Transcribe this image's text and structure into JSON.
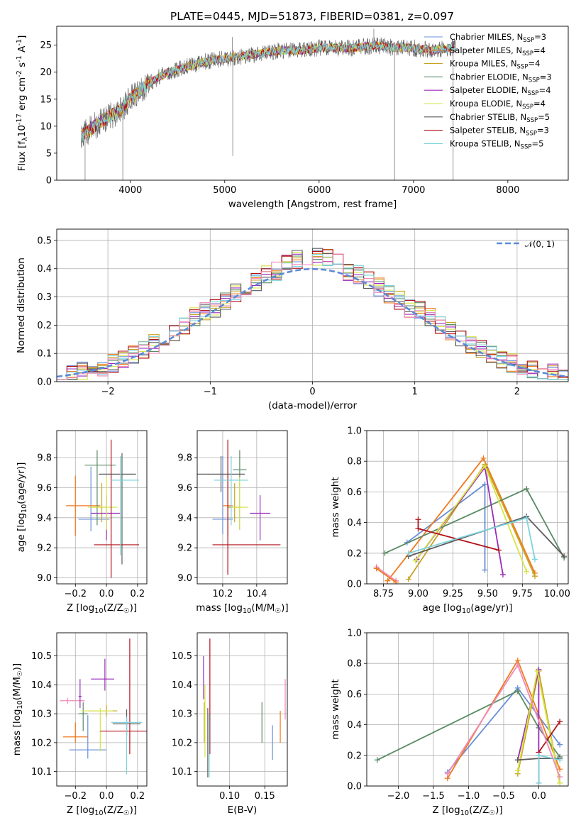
{
  "figure": {
    "title": "PLATE=0445, MJD=51873, FIBERID=0381, z=0.097"
  },
  "model_colors": [
    "#6a8fd8",
    "#ef7a1e",
    "#c8a321",
    "#5a8a64",
    "#9a2cbc",
    "#d6e444",
    "#5c5c5c",
    "#b1121a",
    "#7dd3db"
  ],
  "chart_data": [
    {
      "id": "spectrum",
      "type": "line",
      "xlabel": "wavelength [Angstrom, rest frame]",
      "ylabel": "Flux [f$_\\lambda$10$^{-17}$ erg cm$^{-2}$ s$^{-1}$ A$^{-1}$]",
      "xlim": [
        3220,
        8640
      ],
      "ylim": [
        0,
        28.5
      ],
      "xticks": [
        4000,
        5000,
        6000,
        7000,
        8000
      ],
      "yticks": [
        0,
        5,
        10,
        15,
        20,
        25
      ],
      "grid": false,
      "legend": "top-right",
      "series": [
        {
          "name": "Chabrier MILES, N$_{SSP}$=3",
          "label_main": "Chabrier MILES, N",
          "label_sub": "SSP",
          "label_end": "=3",
          "color": "#6a8fd8"
        },
        {
          "name": "Salpeter MILES, N$_{SSP}$=4",
          "label_main": "Salpeter MILES, N",
          "label_sub": "SSP",
          "label_end": "=4",
          "color": "#ef7a1e"
        },
        {
          "name": "Kroupa MILES, N$_{SSP}$=4",
          "label_main": "Kroupa MILES, N",
          "label_sub": "SSP",
          "label_end": "=4",
          "color": "#c8a321"
        },
        {
          "name": "Chabrier ELODIE, N$_{SSP}$=3",
          "label_main": "Chabrier ELODIE, N",
          "label_sub": "SSP",
          "label_end": "=3",
          "color": "#5a8a64"
        },
        {
          "name": "Salpeter ELODIE, N$_{SSP}$=4",
          "label_main": "Salpeter ELODIE, N",
          "label_sub": "SSP",
          "label_end": "=4",
          "color": "#9a2cbc"
        },
        {
          "name": "Kroupa ELODIE, N$_{SSP}$=4",
          "label_main": "Kroupa ELODIE, N",
          "label_sub": "SSP",
          "label_end": "=4",
          "color": "#d6e444"
        },
        {
          "name": "Chabrier STELIB, N$_{SSP}$=5",
          "label_main": "Chabrier STELIB, N",
          "label_sub": "SSP",
          "label_end": "=5",
          "color": "#5c5c5c"
        },
        {
          "name": "Salpeter STELIB, N$_{SSP}$=3",
          "label_main": "Salpeter STELIB, N",
          "label_sub": "SSP",
          "label_end": "=3",
          "color": "#b1121a"
        },
        {
          "name": "Kroupa STELIB, N$_{SSP}$=5",
          "label_main": "Kroupa STELIB, N",
          "label_sub": "SSP",
          "label_end": "=5",
          "color": "#7dd3db"
        }
      ],
      "continuum": {
        "x": [
          3500,
          3700,
          3900,
          4000,
          4200,
          4400,
          4600,
          4800,
          5000,
          5200,
          5400,
          5600,
          5800,
          6000,
          6200,
          6400,
          6600,
          6800,
          7000,
          7200,
          7400
        ],
        "y": [
          8.5,
          11,
          13,
          15,
          18,
          20,
          21,
          22,
          22.5,
          23,
          23.5,
          24,
          24,
          24.5,
          24.5,
          24.5,
          25,
          24.5,
          24.5,
          24,
          24.5
        ]
      },
      "features": {
        "spikes": [
          {
            "x": 5080,
            "y": 26.5
          },
          {
            "x": 5085,
            "y": 4.5
          },
          {
            "x": 6580,
            "y": 28
          },
          {
            "x": 6800,
            "y": 0
          },
          {
            "x": 7420,
            "y": 0
          },
          {
            "x": 3920,
            "y": 0
          },
          {
            "x": 3520,
            "y": 0
          }
        ]
      }
    },
    {
      "id": "residuals",
      "type": "step",
      "xlabel": "(data-model)/error",
      "ylabel": "Normed distribution",
      "xlim": [
        -2.5,
        2.5
      ],
      "ylim": [
        0,
        0.54
      ],
      "xticks": [
        -2,
        -1,
        0,
        1,
        2
      ],
      "yticks": [
        0.0,
        0.1,
        0.2,
        0.3,
        0.4,
        0.5
      ],
      "grid": true,
      "legend": "top-right",
      "reference": {
        "name": "$\\mathcal{N}(0, 1)$",
        "label_main": "𝒩(0, 1)",
        "mean": 0,
        "sigma": 1,
        "color": "#5b8bd8"
      },
      "bin_width": 0.1,
      "bins_start": -2.5
    },
    {
      "id": "age-vs-Z",
      "type": "errorbar",
      "xlabel": "Z [log$_{10}$($Z$/$Z_\\odot$)]",
      "ylabel": "age  [log$_{10}$($age/yr$)]",
      "xlim": [
        -0.32,
        0.26
      ],
      "ylim": [
        8.96,
        9.98
      ],
      "xticks": [
        -0.2,
        0.0,
        0.2
      ],
      "yticks": [
        9.0,
        9.2,
        9.4,
        9.6,
        9.8
      ],
      "grid": true,
      "points": [
        {
          "x": -0.1,
          "y": 9.39,
          "xerr": [
            0.08,
            0.12
          ],
          "yerr": [
            0.08,
            0.35
          ]
        },
        {
          "x": -0.2,
          "y": 9.48,
          "xerr": [
            0.06,
            0.16
          ],
          "yerr": [
            0.2,
            0.2
          ]
        },
        {
          "x": -0.03,
          "y": 9.47,
          "xerr": [
            0.06,
            0.03
          ],
          "yerr": [
            0.1,
            0.16
          ]
        },
        {
          "x": -0.06,
          "y": 9.75,
          "xerr": [
            0.08,
            0.12
          ],
          "yerr": [
            0.4,
            0.1
          ]
        },
        {
          "x": 0.0,
          "y": 9.43,
          "xerr": [
            0.1,
            0.09
          ],
          "yerr": [
            0.18,
            0.12
          ]
        },
        {
          "x": 0.0,
          "y": 9.47,
          "xerr": [
            0.12,
            0.07
          ],
          "yerr": [
            0.15,
            0.2
          ]
        },
        {
          "x": 0.1,
          "y": 9.69,
          "xerr": [
            0.15,
            0.09
          ],
          "yerr": [
            0.6,
            0.14
          ]
        },
        {
          "x": 0.03,
          "y": 9.22,
          "xerr": [
            0.11,
            0.18
          ],
          "yerr": [
            0.22,
            0.7
          ]
        },
        {
          "x": 0.09,
          "y": 9.65,
          "xerr": [
            0.06,
            0.12
          ],
          "yerr": [
            0.5,
            0.16
          ]
        }
      ]
    },
    {
      "id": "age-vs-mass",
      "type": "errorbar",
      "xlabel": "mass [log$_{10}$($M/M_\\odot$)]",
      "ylabel": "",
      "xlim": [
        10.05,
        10.58
      ],
      "ylim": [
        8.96,
        9.98
      ],
      "xticks": [
        10.2,
        10.4
      ],
      "yticks": [
        9.0,
        9.2,
        9.4,
        9.6,
        9.8
      ],
      "grid": true,
      "points": [
        {
          "x": 10.2,
          "y": 9.39,
          "xerr": [
            0.06,
            0.06
          ],
          "yerr": [
            0.1,
            0.42
          ]
        },
        {
          "x": 10.23,
          "y": 9.48,
          "xerr": [
            0.03,
            0.03
          ],
          "yerr": [
            0.2,
            0.2
          ]
        },
        {
          "x": 10.27,
          "y": 9.47,
          "xerr": [
            0.04,
            0.04
          ],
          "yerr": [
            0.1,
            0.16
          ]
        },
        {
          "x": 10.3,
          "y": 9.72,
          "xerr": [
            0.04,
            0.04
          ],
          "yerr": [
            0.4,
            0.13
          ]
        },
        {
          "x": 10.42,
          "y": 9.43,
          "xerr": [
            0.06,
            0.06
          ],
          "yerr": [
            0.18,
            0.12
          ]
        },
        {
          "x": 10.3,
          "y": 9.47,
          "xerr": [
            0.05,
            0.05
          ],
          "yerr": [
            0.15,
            0.2
          ]
        },
        {
          "x": 10.19,
          "y": 9.69,
          "xerr": [
            0.14,
            0.14
          ],
          "yerr": [
            0.12,
            0.12
          ]
        },
        {
          "x": 10.23,
          "y": 9.22,
          "xerr": [
            0.09,
            0.31
          ],
          "yerr": [
            0.2,
            0.7
          ]
        },
        {
          "x": 10.25,
          "y": 9.65,
          "xerr": [
            0.1,
            0.1
          ],
          "yerr": [
            0.3,
            0.16
          ]
        }
      ]
    },
    {
      "id": "weight-vs-age",
      "type": "line",
      "xlabel": "age  [log$_{10}$($age/yr$)]",
      "ylabel": "mass weight",
      "xlim": [
        8.63,
        10.08
      ],
      "ylim": [
        0,
        1
      ],
      "xticks": [
        8.75,
        9.0,
        9.25,
        9.5,
        9.75,
        10.0
      ],
      "yticks": [
        0.0,
        0.2,
        0.4,
        0.6,
        0.8,
        1.0
      ],
      "grid": true,
      "series": [
        {
          "x": [
            8.92,
            9.48,
            9.48
          ],
          "y": [
            0.27,
            0.65,
            0.09
          ]
        },
        {
          "x": [
            8.78,
            9.47,
            9.84
          ],
          "y": [
            0.02,
            0.82,
            0.07
          ]
        },
        {
          "x": [
            8.93,
            9.48,
            9.84
          ],
          "y": [
            0.03,
            0.78,
            0.05
          ]
        },
        {
          "x": [
            8.76,
            9.78,
            10.05
          ],
          "y": [
            0.2,
            0.62,
            0.17
          ]
        },
        {
          "x": [
            8.99,
            9.48,
            9.61
          ],
          "y": [
            0.16,
            0.76,
            0.06
          ]
        },
        {
          "x": [
            8.98,
            9.48,
            9.78
          ],
          "y": [
            0.15,
            0.77,
            0.08
          ]
        },
        {
          "x": [
            8.93,
            9.78,
            10.05
          ],
          "y": [
            0.18,
            0.44,
            0.18
          ]
        },
        {
          "x": [
            9.0,
            9.0,
            9.58
          ],
          "y": [
            0.42,
            0.36,
            0.22
          ]
        },
        {
          "x": [
            8.93,
            9.78,
            9.84
          ],
          "y": [
            0.2,
            0.43,
            0.16
          ]
        },
        {
          "x": [
            8.7,
            8.84
          ],
          "y": [
            0.11,
            0.02
          ]
        },
        {
          "x": [
            8.7,
            8.84
          ],
          "y": [
            0.1,
            0.01
          ]
        }
      ]
    },
    {
      "id": "mass-vs-Z",
      "type": "errorbar",
      "xlabel": "Z [log$_{10}$($Z$/$Z_\\odot$)]",
      "ylabel": "mass [log$_{10}$($M/M_\\odot$)]",
      "xlim": [
        -0.32,
        0.26
      ],
      "ylim": [
        10.05,
        10.58
      ],
      "xticks": [
        -0.2,
        0.0,
        0.2
      ],
      "yticks": [
        10.1,
        10.2,
        10.3,
        10.4,
        10.5
      ],
      "grid": true,
      "points": [
        {
          "x": -0.12,
          "y": 10.175,
          "xerr": [
            0.12,
            0.12
          ],
          "yerr": [
            0.03,
            0.12
          ]
        },
        {
          "x": -0.2,
          "y": 10.22,
          "xerr": [
            0.08,
            0.08
          ],
          "yerr": [
            0.02,
            0.05
          ]
        },
        {
          "x": 0.0,
          "y": 10.31,
          "xerr": [
            0.12,
            0.07
          ],
          "yerr": [
            0.02,
            0.02
          ]
        },
        {
          "x": -0.15,
          "y": 10.3,
          "xerr": [
            0.03,
            0.03
          ],
          "yerr": [
            0.06,
            0.04
          ]
        },
        {
          "x": -0.01,
          "y": 10.42,
          "xerr": [
            0.09,
            0.06
          ],
          "yerr": [
            0.04,
            0.07
          ]
        },
        {
          "x": -0.04,
          "y": 10.31,
          "xerr": [
            0.12,
            0.08
          ],
          "yerr": [
            0.14,
            0.01
          ]
        },
        {
          "x": 0.13,
          "y": 10.265,
          "xerr": [
            0.09,
            0.09
          ],
          "yerr": [
            0.04,
            0.05
          ]
        },
        {
          "x": 0.15,
          "y": 10.24,
          "xerr": [
            0.19,
            0.15
          ],
          "yerr": [
            0.08,
            0.32
          ]
        },
        {
          "x": 0.13,
          "y": 10.27,
          "xerr": [
            0.1,
            0.1
          ],
          "yerr": [
            0.18,
            0.02
          ]
        },
        {
          "x": -0.25,
          "y": 10.345,
          "xerr": [
            0.05,
            0.11
          ],
          "yerr": [
            0.01,
            0.01
          ]
        },
        {
          "x": -0.17,
          "y": 10.36,
          "xerr": [
            0.01,
            0.01
          ],
          "yerr": [
            0.04,
            0.06
          ]
        }
      ]
    },
    {
      "id": "mass-vs-ebv",
      "type": "errorbar",
      "xlabel": "E(B-V)",
      "ylabel": "",
      "xlim": [
        0.054,
        0.182
      ],
      "ylim": [
        10.05,
        10.58
      ],
      "xticks": [
        0.1,
        0.15
      ],
      "yticks": [
        10.1,
        10.2,
        10.3,
        10.4,
        10.5
      ],
      "grid": true,
      "points": [
        {
          "x": 0.161,
          "y": 10.2,
          "xerr": [
            0,
            0
          ],
          "yerr": [
            0.06,
            0.06
          ]
        },
        {
          "x": 0.172,
          "y": 10.25,
          "xerr": [
            0,
            0
          ],
          "yerr": [
            0.05,
            0.06
          ]
        },
        {
          "x": 0.064,
          "y": 10.3,
          "xerr": [
            0,
            0
          ],
          "yerr": [
            0.1,
            0.04
          ]
        },
        {
          "x": 0.146,
          "y": 10.25,
          "xerr": [
            0,
            0
          ],
          "yerr": [
            0.05,
            0.09
          ]
        },
        {
          "x": 0.063,
          "y": 10.42,
          "xerr": [
            0,
            0
          ],
          "yerr": [
            0.07,
            0.08
          ]
        },
        {
          "x": 0.065,
          "y": 10.25,
          "xerr": [
            0,
            0
          ],
          "yerr": [
            0.1,
            0.15
          ]
        },
        {
          "x": 0.069,
          "y": 10.18,
          "xerr": [
            0,
            0
          ],
          "yerr": [
            0.1,
            0.14
          ]
        },
        {
          "x": 0.072,
          "y": 10.3,
          "xerr": [
            0,
            0
          ],
          "yerr": [
            0.14,
            0.26
          ]
        },
        {
          "x": 0.071,
          "y": 10.2,
          "xerr": [
            0,
            0
          ],
          "yerr": [
            0.12,
            0.1
          ]
        },
        {
          "x": 0.179,
          "y": 10.35,
          "xerr": [
            0,
            0
          ],
          "yerr": [
            0.07,
            0.07
          ]
        }
      ]
    },
    {
      "id": "weight-vs-Z",
      "type": "line",
      "xlabel": "Z [log$_{10}$($Z$/$Z_\\odot$)]",
      "ylabel": "mass weight",
      "xlim": [
        -2.45,
        0.42
      ],
      "ylim": [
        0,
        1
      ],
      "xticks": [
        -2.0,
        -1.5,
        -1.0,
        -0.5,
        0.0
      ],
      "yticks": [
        0.0,
        0.2,
        0.4,
        0.6,
        0.8,
        1.0
      ],
      "grid": true,
      "series": [
        {
          "x": [
            -1.3,
            -0.3,
            0.3
          ],
          "y": [
            0.09,
            0.64,
            0.27
          ]
        },
        {
          "x": [
            -1.3,
            -0.3,
            0.3
          ],
          "y": [
            0.05,
            0.82,
            0.11
          ]
        },
        {
          "x": [
            -0.3,
            0.0,
            0.3
          ],
          "y": [
            0.08,
            0.75,
            0.02
          ]
        },
        {
          "x": [
            -2.3,
            -0.3,
            0.0,
            0.3
          ],
          "y": [
            0.17,
            0.62,
            0.38,
            0.19
          ]
        },
        {
          "x": [
            -0.3,
            0.0,
            0.0
          ],
          "y": [
            0.17,
            0.76,
            0.02
          ]
        },
        {
          "x": [
            -0.3,
            -0.02,
            0.3
          ],
          "y": [
            0.1,
            0.75,
            0.02
          ]
        },
        {
          "x": [
            -0.3,
            0.0,
            0.3
          ],
          "y": [
            0.17,
            0.18,
            0.18
          ]
        },
        {
          "x": [
            0.0,
            0.3
          ],
          "y": [
            0.22,
            0.42
          ]
        },
        {
          "x": [
            0.0,
            0.0,
            0.3
          ],
          "y": [
            0.02,
            0.2,
            0.17
          ]
        },
        {
          "x": [
            -1.3,
            -0.3,
            0.3
          ],
          "y": [
            0.08,
            0.79,
            0.06
          ]
        }
      ]
    }
  ]
}
